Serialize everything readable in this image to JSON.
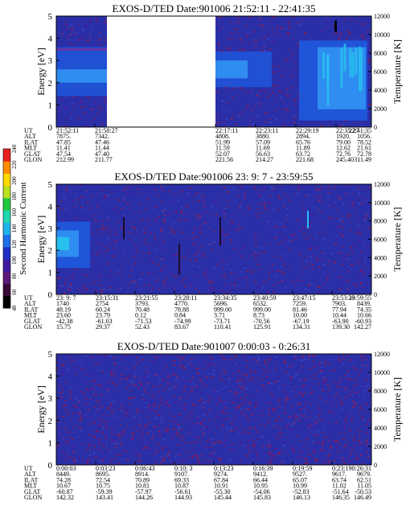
{
  "colors": {
    "background": "#2a2fa8",
    "speckle_red": "#8a1f55",
    "speckle_purple": "#5a1a8a",
    "band_blue": "#1f55d8",
    "band_bright": "#2f8cf0",
    "band_cyan": "#27c0ee",
    "gap": "#ffffff",
    "frame": "#000000"
  },
  "colorbar": {
    "label": "Second Harmonic Current",
    "ticks": [
      "40",
      "60",
      "80",
      "100",
      "120",
      "140",
      "160",
      "180",
      "200",
      "220",
      "240"
    ],
    "colors": [
      "#000000",
      "#3a0a3a",
      "#5c1a7a",
      "#3e1aa0",
      "#1f2fc8",
      "#1f6fe8",
      "#1fb4e8",
      "#1fd8b0",
      "#20c840",
      "#b8e020",
      "#ffd800",
      "#ff8c00",
      "#e82020"
    ]
  },
  "chart_data": [
    {
      "type": "heatmap",
      "title": "EXOS-D/TED   Date:901006  21:52:11 - 22:41:35",
      "ylabel": "Energy [eV]",
      "y2label": "Temperature [K]",
      "ylim": [
        0,
        5
      ],
      "y2lim": [
        0,
        12000
      ],
      "yticks": [
        "0",
        "1",
        "2",
        "3",
        "4",
        "5"
      ],
      "y2ticks": [
        "0",
        "2000",
        "4000",
        "6000",
        "8000",
        "10000",
        "12000"
      ],
      "data_gap": [
        "21:58:27",
        "22:17:11"
      ],
      "aux_rows": [
        "UT",
        "ALT",
        "ILAT",
        "MLT",
        "GLAT",
        "GLON"
      ],
      "aux_columns": [
        [
          "21:52:11",
          "7875.",
          "47.85",
          "11.41",
          "47.54",
          "212.99"
        ],
        [
          "21:58:27",
          "7342.",
          "47.46",
          "11.44",
          "47.40",
          "211.77"
        ],
        [
          "22:17:11",
          "4808.",
          "51.99",
          "11.59",
          "52.07",
          "221.56"
        ],
        [
          "22:23:11",
          "3880.",
          "57.09",
          "11.69",
          "56.63",
          "214.27"
        ],
        [
          "22:29:19",
          "2894.",
          "65.76",
          "11.89",
          "63.72",
          "221.68"
        ],
        [
          "22:35:27",
          "1920.",
          "79.00",
          "12.62",
          "72.76",
          "245.40"
        ],
        [
          "22:41:35",
          "1056.",
          "78.52",
          "21.61",
          "72.78",
          "311.49"
        ]
      ]
    },
    {
      "type": "heatmap",
      "title": "EXOS-D/TED   Date:901006  23: 9: 7 - 23:59:55",
      "ylabel": "Energy [eV]",
      "y2label": "Temperature [K]",
      "ylim": [
        0,
        5
      ],
      "y2lim": [
        0,
        12000
      ],
      "yticks": [
        "0",
        "1",
        "2",
        "3",
        "4",
        "5"
      ],
      "y2ticks": [
        "0",
        "2000",
        "4000",
        "6000",
        "8000",
        "10000",
        "12000"
      ],
      "aux_rows": [
        "UT",
        "ALT",
        "ILAT",
        "MLT",
        "GLAT",
        "GLON"
      ],
      "aux_columns": [
        [
          "23: 9: 7",
          "1740",
          "48.19",
          "23.60",
          "-42.38",
          "15.75"
        ],
        [
          "23:15:31",
          "2754",
          "60.24",
          "23.79",
          "-61.03",
          "29.37"
        ],
        [
          "23:21:55",
          "3793.",
          "70.48",
          "0.12",
          "-71.53",
          "52.43"
        ],
        [
          "23:28:11",
          "4770.",
          "78.88",
          "0.84",
          "-74.99",
          "83.67"
        ],
        [
          "23:34:35",
          "5696.",
          "999.00",
          "3.71",
          "-73.71",
          "110.41"
        ],
        [
          "23:40:59",
          "6532.",
          "999.00",
          "8.73",
          "-70.56",
          "125.91"
        ],
        [
          "23:47:15",
          "7259.",
          "81.46",
          "10.00",
          "-67.19",
          "134.31"
        ],
        [
          "23:53:39",
          "7903.",
          "77.94",
          "10.44",
          "-63.90",
          "139.30"
        ],
        [
          "23:59:55",
          "8439.",
          "74.35",
          "10.66",
          "-60.93",
          "142.27"
        ]
      ]
    },
    {
      "type": "heatmap",
      "title": "EXOS-D/TED   Date:901007  0:00:03 - 0:26:31",
      "ylabel": "Energy [eV]",
      "y2label": "Temperature [K]",
      "ylim": [
        0,
        5
      ],
      "y2lim": [
        0,
        12000
      ],
      "yticks": [
        "0",
        "1",
        "2",
        "3",
        "4",
        "5"
      ],
      "y2ticks": [
        "0",
        "2000",
        "4000",
        "6000",
        "8000",
        "10000",
        "12000"
      ],
      "aux_rows": [
        "UT",
        "ALT",
        "ILAT",
        "MLT",
        "GLAT",
        "GLON"
      ],
      "aux_columns": [
        [
          "0:00:03",
          "8449.",
          "74.28",
          "10.67",
          "-60.87",
          "142.32"
        ],
        [
          "0:03:23",
          "8695.",
          "72.54",
          "10.75",
          "-59.39",
          "143.41"
        ],
        [
          "0:06:43",
          "8914.",
          "70.89",
          "10.81",
          "-57.97",
          "144.26"
        ],
        [
          "0:10: 3",
          "9107.",
          "69.33",
          "10.87",
          "-56.61",
          "144.93"
        ],
        [
          "0:13:23",
          "9274.",
          "67.84",
          "10.91",
          "-55.30",
          "145.44"
        ],
        [
          "0:16:39",
          "9412.",
          "66.44",
          "10.95",
          "-54.06",
          "145.83"
        ],
        [
          "0:19:59",
          "9527.",
          "65.07",
          "10.99",
          "-52.83",
          "146.13"
        ],
        [
          "0:23:19",
          "9617.",
          "63.74",
          "11.02",
          "-51.64",
          "146.35"
        ],
        [
          "0:26:31",
          "9679.",
          "62.51",
          "11.05",
          "-50.53",
          "146.49"
        ]
      ]
    }
  ]
}
